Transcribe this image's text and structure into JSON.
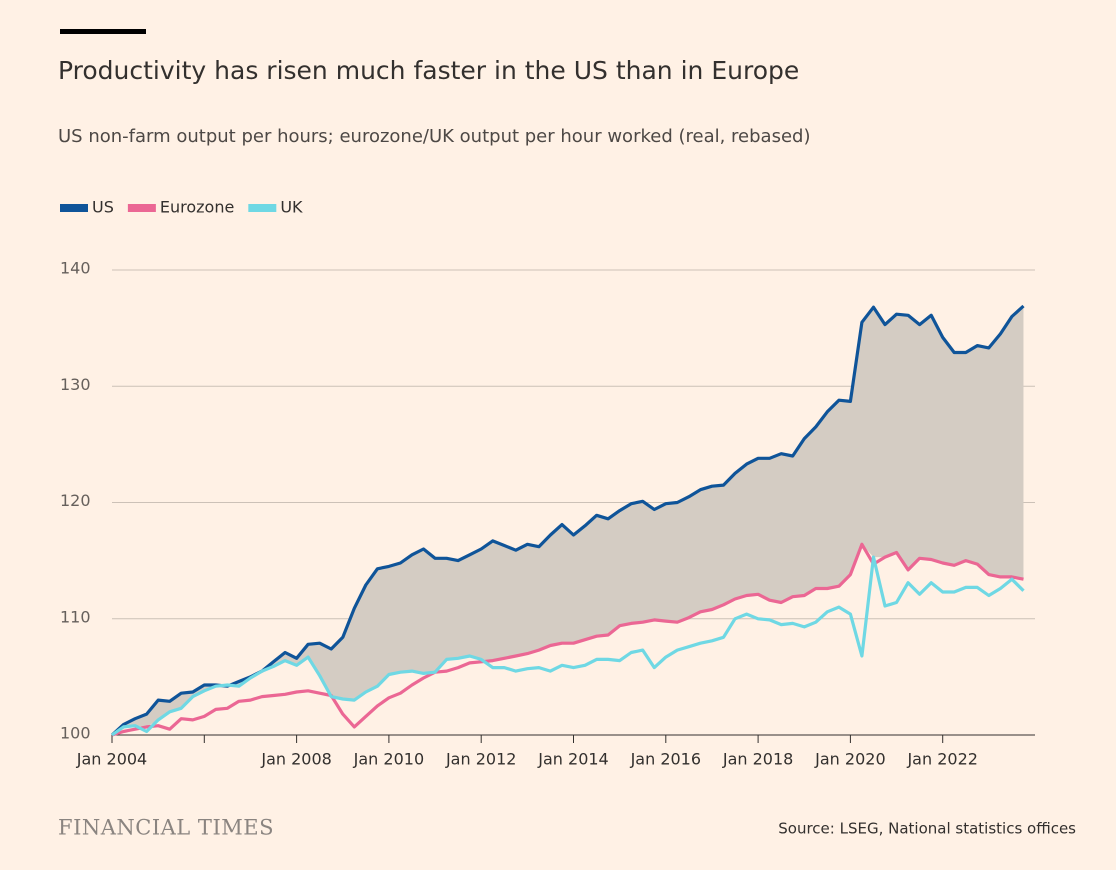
{
  "chart_data": {
    "type": "line",
    "title": "Productivity has risen much faster in the US than in Europe",
    "subtitle": "US non-farm output per hours; eurozone/UK output per hour worked (real, rebased)",
    "source": "Source: LSEG, National statistics offices",
    "brand": "FINANCIAL TIMES",
    "x": [
      "2004-01",
      "2004-04",
      "2004-07",
      "2004-10",
      "2005-01",
      "2005-04",
      "2005-07",
      "2005-10",
      "2006-01",
      "2006-04",
      "2006-07",
      "2006-10",
      "2007-01",
      "2007-04",
      "2007-07",
      "2007-10",
      "2008-01",
      "2008-04",
      "2008-07",
      "2008-10",
      "2009-01",
      "2009-04",
      "2009-07",
      "2009-10",
      "2010-01",
      "2010-04",
      "2010-07",
      "2010-10",
      "2011-01",
      "2011-04",
      "2011-07",
      "2011-10",
      "2012-01",
      "2012-04",
      "2012-07",
      "2012-10",
      "2013-01",
      "2013-04",
      "2013-07",
      "2013-10",
      "2014-01",
      "2014-04",
      "2014-07",
      "2014-10",
      "2015-01",
      "2015-04",
      "2015-07",
      "2015-10",
      "2016-01",
      "2016-04",
      "2016-07",
      "2016-10",
      "2017-01",
      "2017-04",
      "2017-07",
      "2017-10",
      "2018-01",
      "2018-04",
      "2018-07",
      "2018-10",
      "2019-01",
      "2019-04",
      "2019-07",
      "2019-10",
      "2020-01",
      "2020-04",
      "2020-07",
      "2020-10",
      "2021-01",
      "2021-04",
      "2021-07",
      "2021-10",
      "2022-01",
      "2022-04",
      "2022-07",
      "2022-10",
      "2023-01",
      "2023-04",
      "2023-07",
      "2023-10"
    ],
    "series": [
      {
        "name": "US",
        "color": "#0f5499",
        "values": [
          100,
          100.9,
          101.4,
          101.8,
          103.0,
          102.9,
          103.6,
          103.7,
          104.3,
          104.3,
          104.2,
          104.6,
          105.0,
          105.5,
          106.3,
          107.1,
          106.6,
          107.8,
          107.9,
          107.4,
          108.4,
          110.9,
          112.9,
          114.3,
          114.5,
          114.8,
          115.5,
          116.0,
          115.2,
          115.2,
          115.0,
          115.5,
          116.0,
          116.7,
          116.3,
          115.9,
          116.4,
          116.2,
          117.2,
          118.1,
          117.2,
          118.0,
          118.9,
          118.6,
          119.3,
          119.9,
          120.1,
          119.4,
          119.9,
          120.0,
          120.5,
          121.1,
          121.4,
          121.5,
          122.5,
          123.3,
          123.8,
          123.8,
          124.2,
          124.0,
          125.5,
          126.5,
          127.8,
          128.8,
          128.7,
          135.5,
          136.8,
          135.3,
          136.2,
          136.1,
          135.3,
          136.1,
          134.2,
          132.9,
          132.9,
          133.5,
          133.3,
          134.5,
          136.0,
          136.9
        ]
      },
      {
        "name": "Eurozone",
        "color": "#eb6794",
        "values": [
          100,
          100.3,
          100.5,
          100.7,
          100.8,
          100.5,
          101.4,
          101.3,
          101.6,
          102.2,
          102.3,
          102.9,
          103.0,
          103.3,
          103.4,
          103.5,
          103.7,
          103.8,
          103.6,
          103.4,
          101.8,
          100.7,
          101.6,
          102.5,
          103.2,
          103.6,
          104.3,
          104.9,
          105.4,
          105.5,
          105.8,
          106.2,
          106.3,
          106.4,
          106.6,
          106.8,
          107.0,
          107.3,
          107.7,
          107.9,
          107.9,
          108.2,
          108.5,
          108.6,
          109.4,
          109.6,
          109.7,
          109.9,
          109.8,
          109.7,
          110.1,
          110.6,
          110.8,
          111.2,
          111.7,
          112.0,
          112.1,
          111.6,
          111.4,
          111.9,
          112.0,
          112.6,
          112.6,
          112.8,
          113.8,
          116.4,
          114.7,
          115.3,
          115.7,
          114.2,
          115.2,
          115.1,
          114.8,
          114.6,
          115.0,
          114.7,
          113.8,
          113.6,
          113.6,
          113.4
        ]
      },
      {
        "name": "UK",
        "color": "#6fd8e4",
        "values": [
          100,
          100.7,
          100.8,
          100.3,
          101.3,
          102.0,
          102.3,
          103.3,
          103.8,
          104.2,
          104.3,
          104.2,
          104.9,
          105.5,
          105.9,
          106.4,
          106.0,
          106.7,
          105.1,
          103.3,
          103.1,
          103.0,
          103.7,
          104.2,
          105.2,
          105.4,
          105.5,
          105.3,
          105.4,
          106.5,
          106.6,
          106.8,
          106.5,
          105.8,
          105.8,
          105.5,
          105.7,
          105.8,
          105.5,
          106.0,
          105.8,
          106.0,
          106.5,
          106.5,
          106.4,
          107.1,
          107.3,
          105.8,
          106.7,
          107.3,
          107.6,
          107.9,
          108.1,
          108.4,
          110.0,
          110.4,
          110.0,
          109.9,
          109.5,
          109.6,
          109.3,
          109.7,
          110.6,
          111.0,
          110.4,
          106.8,
          115.3,
          111.1,
          111.4,
          113.1,
          112.1,
          113.1,
          112.3,
          112.3,
          112.7,
          112.7,
          112.0,
          112.6,
          113.4,
          112.4
        ]
      }
    ],
    "xlim": [
      "2004-01",
      "2024-01"
    ],
    "xticks": [
      {
        "value": "2004-01",
        "label": "Jan 2004"
      },
      {
        "value": "2006-01",
        "label": null
      },
      {
        "value": "2008-01",
        "label": "Jan 2008"
      },
      {
        "value": "2010-01",
        "label": "Jan 2010"
      },
      {
        "value": "2012-01",
        "label": "Jan 2012"
      },
      {
        "value": "2014-01",
        "label": "Jan 2014"
      },
      {
        "value": "2016-01",
        "label": "Jan 2016"
      },
      {
        "value": "2018-01",
        "label": "Jan 2018"
      },
      {
        "value": "2020-01",
        "label": "Jan 2020"
      },
      {
        "value": "2022-01",
        "label": "Jan 2022"
      }
    ],
    "ylim": [
      100,
      140
    ],
    "yticks": [
      100,
      110,
      120,
      130,
      140
    ],
    "grid": true,
    "legend": "top-left"
  }
}
